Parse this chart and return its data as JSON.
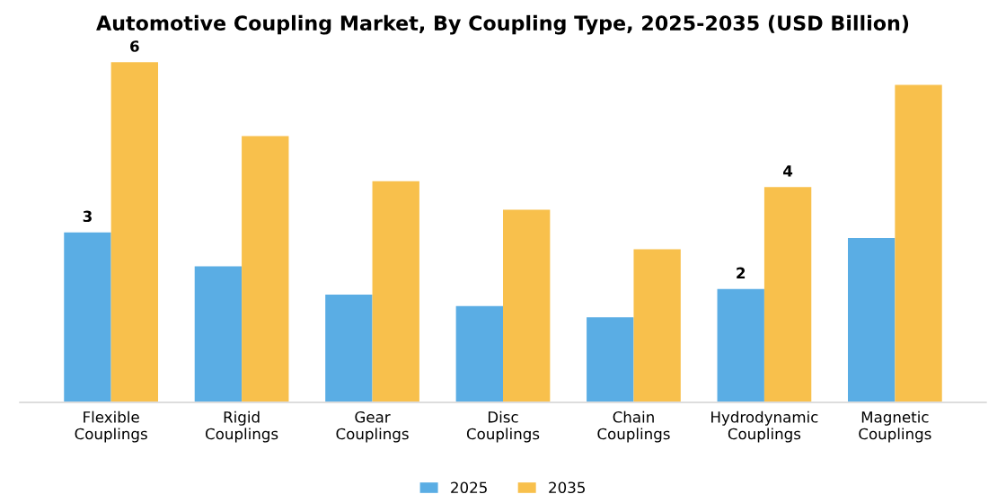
{
  "chart_data": {
    "type": "bar",
    "title": "Automotive Coupling Market, By Coupling Type, 2025-2035 (USD Billion)",
    "categories": [
      "Flexible Couplings",
      "Rigid Couplings",
      "Gear Couplings",
      "Disc Couplings",
      "Chain Couplings",
      "Hydrodynamic Couplings",
      "Magnetic Couplings"
    ],
    "series": [
      {
        "name": "2025",
        "color": "#5aade4",
        "values": [
          3,
          2.4,
          1.9,
          1.7,
          1.5,
          2,
          2.9
        ],
        "value_labels": [
          "3",
          null,
          null,
          null,
          null,
          "2",
          null
        ]
      },
      {
        "name": "2035",
        "color": "#f8c04c",
        "values": [
          6,
          4.7,
          3.9,
          3.4,
          2.7,
          3.8,
          5.6
        ],
        "value_labels": [
          "6",
          null,
          null,
          null,
          null,
          "4",
          null
        ]
      }
    ],
    "legend": "bottom",
    "grid": false
  }
}
